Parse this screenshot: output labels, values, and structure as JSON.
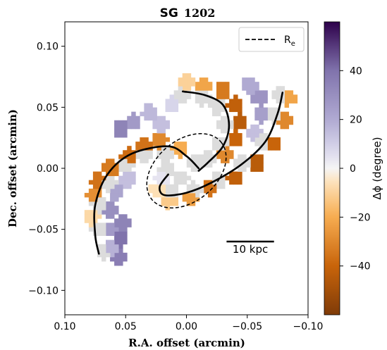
{
  "chart_data": {
    "type": "heatmap",
    "title_prefix": "SG",
    "title_number": "1202",
    "xlabel": "R.A. offset (arcmin)",
    "ylabel": "Dec. offset (arcmin)",
    "xlim": [
      0.1,
      -0.1
    ],
    "ylim": [
      -0.12,
      0.12
    ],
    "x_ticks": [
      0.1,
      0.05,
      0.0,
      -0.05,
      -0.1
    ],
    "x_tick_labels": [
      "0.10",
      "0.05",
      "0.00",
      "−0.05",
      "−0.10"
    ],
    "y_ticks": [
      0.1,
      0.05,
      0.0,
      -0.05,
      -0.1
    ],
    "y_tick_labels": [
      "0.10",
      "0.05",
      "0.00",
      "−0.05",
      "−0.10"
    ],
    "colorbar": {
      "label": "Δϕ (degree)",
      "range": [
        -60,
        60
      ],
      "ticks": [
        40,
        20,
        0,
        -20,
        -40
      ],
      "tick_labels": [
        "40",
        "20",
        "0",
        "−20",
        "−40"
      ],
      "colormap": "PuOr",
      "colors": {
        "max": "#2d004b",
        "mid": "#f7f7f7",
        "min": "#7f3b08"
      }
    },
    "legend": {
      "label": "R",
      "label_sub": "e",
      "style": "dashed",
      "location": "upper right"
    },
    "scale_bar": {
      "label": "10 kpc",
      "x_start": -0.033,
      "x_end": -0.072,
      "y": -0.06
    },
    "effective_radius_ellipse": {
      "center": [
        0.0,
        -0.002
      ],
      "semi_major": 0.037,
      "semi_minor": 0.025,
      "angle_deg": 40
    },
    "arms": [
      {
        "name": "",
        "points": [
          [
            0.003,
            0.063
          ],
          [
            -0.015,
            0.06
          ],
          [
            -0.03,
            0.052
          ],
          [
            -0.035,
            0.035
          ],
          [
            -0.03,
            0.018
          ],
          [
            -0.018,
            0.005
          ],
          [
            -0.01,
            -0.002
          ]
        ]
      },
      {
        "name": "",
        "points": [
          [
            -0.079,
            0.062
          ],
          [
            -0.075,
            0.045
          ],
          [
            -0.065,
            0.022
          ],
          [
            -0.045,
            0.003
          ],
          [
            -0.02,
            -0.012
          ],
          [
            0.0,
            -0.02
          ],
          [
            0.018,
            -0.022
          ],
          [
            0.022,
            -0.015
          ],
          [
            0.015,
            -0.005
          ]
        ]
      },
      {
        "name": "",
        "points": [
          [
            -0.01,
            0.0
          ],
          [
            0.0,
            0.01
          ],
          [
            0.015,
            0.018
          ],
          [
            0.045,
            0.012
          ],
          [
            0.065,
            -0.005
          ],
          [
            0.075,
            -0.03
          ],
          [
            0.075,
            -0.055
          ],
          [
            0.072,
            -0.07
          ]
        ]
      }
    ],
    "band_samples": [
      {
        "x": 0.068,
        "y": -0.068,
        "v": 0
      },
      {
        "x": 0.072,
        "y": -0.05,
        "v": 0
      },
      {
        "x": 0.072,
        "y": -0.03,
        "v": 0
      },
      {
        "x": 0.064,
        "y": -0.012,
        "v": 0
      },
      {
        "x": 0.05,
        "y": 0.002,
        "v": 0
      },
      {
        "x": 0.034,
        "y": 0.012,
        "v": 0
      },
      {
        "x": 0.018,
        "y": 0.012,
        "v": 0
      },
      {
        "x": 0.062,
        "y": -0.066,
        "v": 18
      },
      {
        "x": 0.064,
        "y": -0.05,
        "v": 26
      },
      {
        "x": 0.062,
        "y": -0.034,
        "v": 30
      },
      {
        "x": 0.058,
        "y": -0.02,
        "v": 22
      },
      {
        "x": 0.048,
        "y": -0.009,
        "v": 14
      },
      {
        "x": 0.056,
        "y": -0.072,
        "v": 36
      },
      {
        "x": 0.054,
        "y": -0.058,
        "v": 40
      },
      {
        "x": 0.052,
        "y": -0.044,
        "v": 34
      },
      {
        "x": 0.078,
        "y": -0.04,
        "v": -8
      },
      {
        "x": 0.076,
        "y": -0.022,
        "v": -28
      },
      {
        "x": 0.072,
        "y": -0.01,
        "v": -36
      },
      {
        "x": 0.062,
        "y": 0.0,
        "v": -34
      },
      {
        "x": 0.048,
        "y": 0.01,
        "v": -38
      },
      {
        "x": 0.034,
        "y": 0.018,
        "v": -36
      },
      {
        "x": 0.022,
        "y": 0.022,
        "v": -30
      },
      {
        "x": 0.006,
        "y": 0.016,
        "v": -20
      },
      {
        "x": 0.004,
        "y": 0.06,
        "v": 0
      },
      {
        "x": -0.014,
        "y": 0.058,
        "v": 0
      },
      {
        "x": -0.026,
        "y": 0.05,
        "v": 0
      },
      {
        "x": -0.032,
        "y": 0.036,
        "v": 0
      },
      {
        "x": -0.028,
        "y": 0.02,
        "v": 0
      },
      {
        "x": -0.018,
        "y": 0.008,
        "v": 0
      },
      {
        "x": 0.0,
        "y": 0.07,
        "v": -10
      },
      {
        "x": -0.014,
        "y": 0.068,
        "v": -22
      },
      {
        "x": -0.03,
        "y": 0.064,
        "v": -34
      },
      {
        "x": -0.04,
        "y": 0.052,
        "v": -42
      },
      {
        "x": -0.044,
        "y": 0.038,
        "v": -44
      },
      {
        "x": -0.04,
        "y": 0.024,
        "v": -40
      },
      {
        "x": -0.032,
        "y": 0.012,
        "v": -30
      },
      {
        "x": 0.012,
        "y": 0.052,
        "v": 8
      },
      {
        "x": 0.03,
        "y": 0.046,
        "v": 16
      },
      {
        "x": 0.044,
        "y": 0.038,
        "v": 26
      },
      {
        "x": 0.054,
        "y": 0.032,
        "v": 34
      },
      {
        "x": 0.02,
        "y": 0.036,
        "v": 14
      },
      {
        "x": -0.052,
        "y": 0.068,
        "v": 20
      },
      {
        "x": -0.06,
        "y": 0.058,
        "v": 28
      },
      {
        "x": -0.062,
        "y": 0.044,
        "v": 24
      },
      {
        "x": -0.056,
        "y": 0.028,
        "v": 14
      },
      {
        "x": -0.078,
        "y": 0.06,
        "v": 0
      },
      {
        "x": -0.072,
        "y": 0.044,
        "v": 0
      },
      {
        "x": -0.062,
        "y": 0.022,
        "v": 0
      },
      {
        "x": -0.046,
        "y": 0.004,
        "v": 0
      },
      {
        "x": -0.026,
        "y": -0.01,
        "v": 0
      },
      {
        "x": -0.006,
        "y": -0.018,
        "v": 0
      },
      {
        "x": 0.012,
        "y": -0.02,
        "v": 0
      },
      {
        "x": -0.084,
        "y": 0.058,
        "v": -22
      },
      {
        "x": -0.08,
        "y": 0.04,
        "v": -30
      },
      {
        "x": -0.072,
        "y": 0.02,
        "v": -40
      },
      {
        "x": -0.058,
        "y": 0.004,
        "v": -44
      },
      {
        "x": -0.04,
        "y": -0.008,
        "v": -42
      },
      {
        "x": -0.02,
        "y": -0.016,
        "v": -36
      },
      {
        "x": -0.004,
        "y": -0.024,
        "v": -24
      },
      {
        "x": 0.014,
        "y": -0.026,
        "v": -12
      },
      {
        "x": 0.024,
        "y": -0.018,
        "v": -6
      },
      {
        "x": 0.02,
        "y": -0.008,
        "v": 4
      },
      {
        "x": 0.016,
        "y": 0.0,
        "v": 0
      },
      {
        "x": -0.008,
        "y": 0.004,
        "v": 0
      },
      {
        "x": 0.004,
        "y": -0.008,
        "v": 0
      }
    ]
  }
}
